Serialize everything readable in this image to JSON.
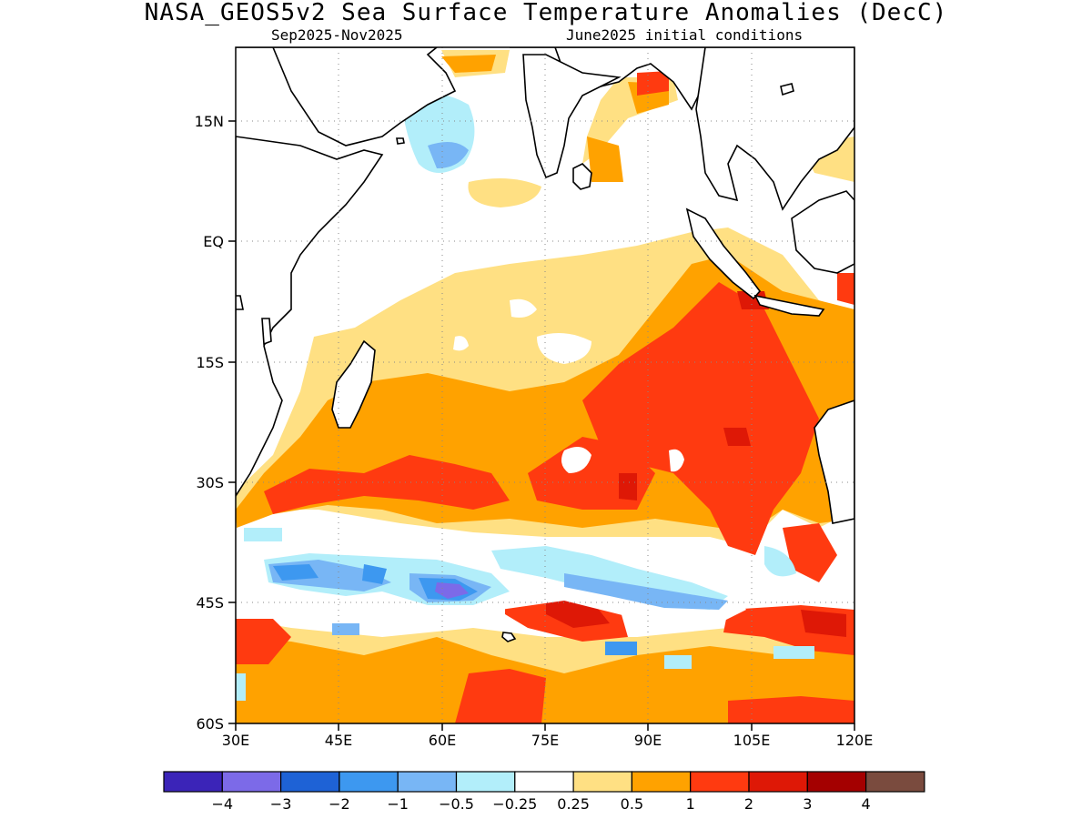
{
  "title": "NASA_GEOS5v2 Sea Surface Temperature Anomalies (DecC)",
  "subtitle_left": "Sep2025-Nov2025",
  "subtitle_right": "June2025 initial conditions",
  "lat_ticks": [
    "15N",
    "EQ",
    "15S",
    "30S",
    "45S",
    "60S"
  ],
  "lon_ticks": [
    "30E",
    "45E",
    "60E",
    "75E",
    "90E",
    "105E",
    "120E"
  ],
  "colorbar": {
    "colors": [
      "#3b24b8",
      "#7c6ae8",
      "#1e62d6",
      "#3d98f0",
      "#78b6f5",
      "#b2eefa",
      "#ffffff",
      "#ffe083",
      "#ffa200",
      "#ff3a10",
      "#de1806",
      "#a40000",
      "#7a4b3e"
    ],
    "labels": [
      "-4",
      "-3",
      "-2",
      "-1",
      "-0.5",
      "-0.25",
      "0.25",
      "0.5",
      "1",
      "2",
      "3",
      "4"
    ]
  },
  "map": {
    "extent": {
      "lon": [
        30,
        120
      ],
      "lat": [
        -60,
        21
      ]
    },
    "grid": "dotted"
  }
}
